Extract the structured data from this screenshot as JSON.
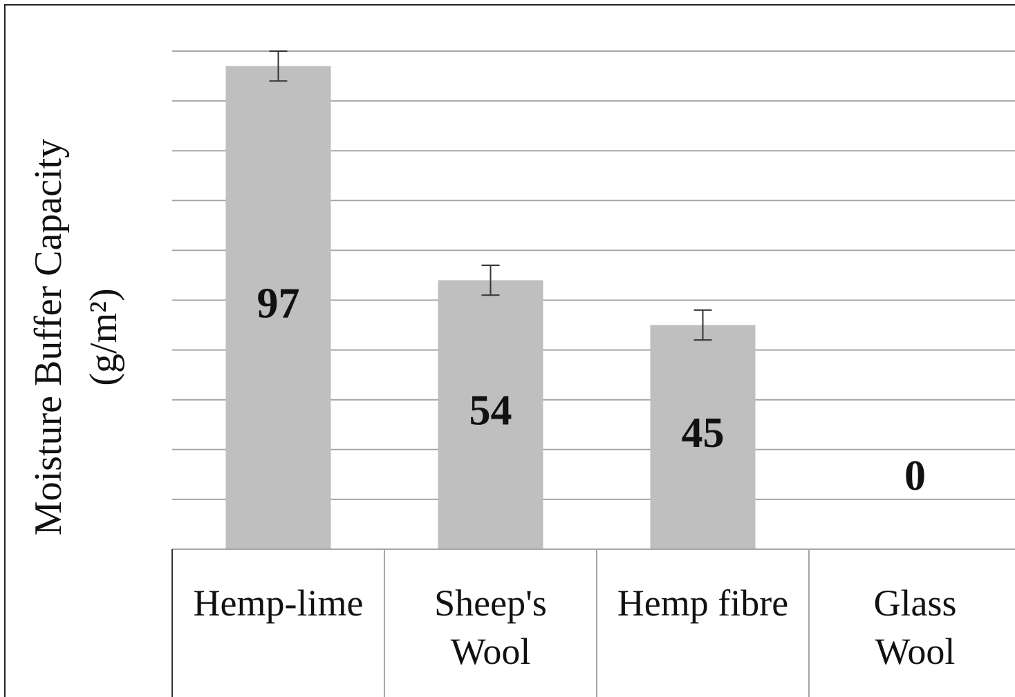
{
  "chart_data": {
    "type": "bar",
    "ylabel": [
      "Moisture Buffer Capacity",
      "(g/m²)"
    ],
    "categories": [
      "Hemp-lime",
      "Sheep's\nWool",
      "Hemp fibre",
      "Glass\nWool"
    ],
    "values": [
      97,
      54,
      45,
      0
    ],
    "errors": [
      3,
      3,
      3,
      null
    ],
    "color": "#bfbfbf",
    "ylim": [
      0,
      100
    ],
    "yticks": [
      0,
      10,
      20,
      30,
      40,
      50,
      60,
      70,
      80,
      90,
      100
    ],
    "grid": true
  }
}
